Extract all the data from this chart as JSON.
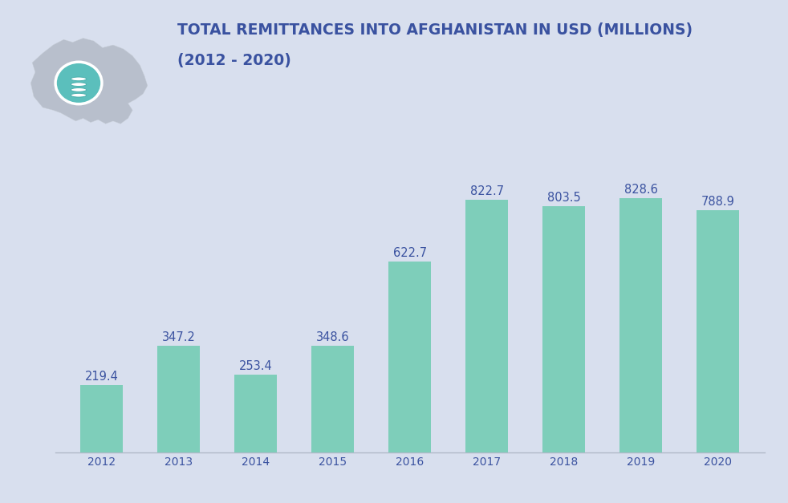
{
  "years": [
    "2012",
    "2013",
    "2014",
    "2015",
    "2016",
    "2017",
    "2018",
    "2019",
    "2020"
  ],
  "values": [
    219.4,
    347.2,
    253.4,
    348.6,
    622.7,
    822.7,
    803.5,
    828.6,
    788.9
  ],
  "bar_color": "#7ECEBA",
  "background_color": "#d8dfee",
  "title_line1": "TOTAL REMITTANCES INTO AFGHANISTAN IN USD (MILLIONS)",
  "title_line2": "(2012 - 2020)",
  "title_color": "#3a52a0",
  "label_color": "#3a52a0",
  "tick_color": "#3a52a0",
  "ylim": [
    0,
    950
  ],
  "title_fontsize": 13.5,
  "label_fontsize": 10.5,
  "tick_fontsize": 10,
  "map_color": "#b8bfcc",
  "circle_color": "#5bbfbc",
  "bottom_line_color": "#b0b8c8"
}
